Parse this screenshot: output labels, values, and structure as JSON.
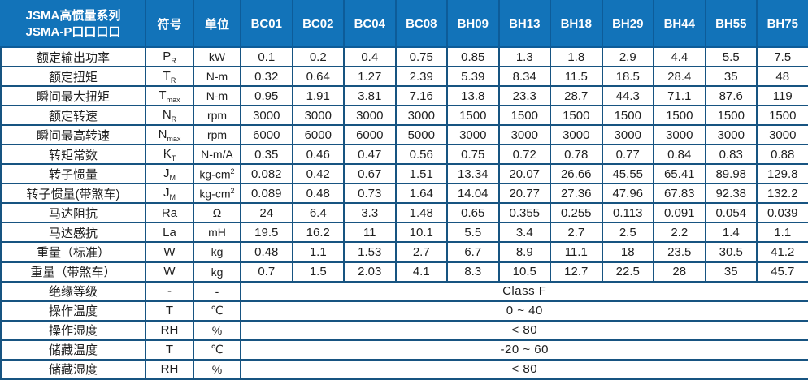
{
  "colors": {
    "header_bg": "#1273b9",
    "header_separator": "#0d5c99",
    "grid_border": "#175481",
    "text": "#1f1f1f",
    "header_text": "#ffffff"
  },
  "table": {
    "title_line1": "JSMA高惯量系列",
    "title_line2": "JSMA-P口口口口",
    "symbol_header": "符号",
    "unit_header": "单位",
    "models": [
      "BC01",
      "BC02",
      "BC04",
      "BC08",
      "BH09",
      "BH13",
      "BH18",
      "BH29",
      "BH44",
      "BH55",
      "BH75"
    ],
    "rows": [
      {
        "label": "额定输出功率",
        "symbol": "P",
        "symbol_sub": "R",
        "unit": "kW",
        "values": [
          "0.1",
          "0.2",
          "0.4",
          "0.75",
          "0.85",
          "1.3",
          "1.8",
          "2.9",
          "4.4",
          "5.5",
          "7.5"
        ]
      },
      {
        "label": "额定扭矩",
        "symbol": "T",
        "symbol_sub": "R",
        "unit": "N-m",
        "values": [
          "0.32",
          "0.64",
          "1.27",
          "2.39",
          "5.39",
          "8.34",
          "11.5",
          "18.5",
          "28.4",
          "35",
          "48"
        ]
      },
      {
        "label": "瞬间最大扭矩",
        "symbol": "T",
        "symbol_sub": "max",
        "unit": "N-m",
        "values": [
          "0.95",
          "1.91",
          "3.81",
          "7.16",
          "13.8",
          "23.3",
          "28.7",
          "44.3",
          "71.1",
          "87.6",
          "119"
        ]
      },
      {
        "label": "额定转速",
        "symbol": "N",
        "symbol_sub": "R",
        "unit": "rpm",
        "values": [
          "3000",
          "3000",
          "3000",
          "3000",
          "1500",
          "1500",
          "1500",
          "1500",
          "1500",
          "1500",
          "1500"
        ]
      },
      {
        "label": "瞬间最高转速",
        "symbol": "N",
        "symbol_sub": "max",
        "unit": "rpm",
        "values": [
          "6000",
          "6000",
          "6000",
          "5000",
          "3000",
          "3000",
          "3000",
          "3000",
          "3000",
          "3000",
          "3000"
        ]
      },
      {
        "label": "转矩常数",
        "symbol": "K",
        "symbol_sub": "T",
        "unit": "N-m/A",
        "values": [
          "0.35",
          "0.46",
          "0.47",
          "0.56",
          "0.75",
          "0.72",
          "0.78",
          "0.77",
          "0.84",
          "0.83",
          "0.88"
        ]
      },
      {
        "label": "转子惯量",
        "symbol": "J",
        "symbol_sub": "M",
        "unit": "kg-cm",
        "unit_sup": "2",
        "values": [
          "0.082",
          "0.42",
          "0.67",
          "1.51",
          "13.34",
          "20.07",
          "26.66",
          "45.55",
          "65.41",
          "89.98",
          "129.8"
        ]
      },
      {
        "label": "转子惯量(带煞车)",
        "symbol": "J",
        "symbol_sub": "M",
        "unit": "kg-cm",
        "unit_sup": "2",
        "values": [
          "0.089",
          "0.48",
          "0.73",
          "1.64",
          "14.04",
          "20.77",
          "27.36",
          "47.96",
          "67.83",
          "92.38",
          "132.2"
        ]
      },
      {
        "label": "马达阻抗",
        "symbol": "Ra",
        "unit": "Ω",
        "values": [
          "24",
          "6.4",
          "3.3",
          "1.48",
          "0.65",
          "0.355",
          "0.255",
          "0.113",
          "0.091",
          "0.054",
          "0.039"
        ]
      },
      {
        "label": "马达感抗",
        "symbol": "La",
        "unit": "mH",
        "values": [
          "19.5",
          "16.2",
          "11",
          "10.1",
          "5.5",
          "3.4",
          "2.7",
          "2.5",
          "2.2",
          "1.4",
          "1.1"
        ]
      },
      {
        "label": "重量（标准）",
        "symbol": "W",
        "unit": "kg",
        "values": [
          "0.48",
          "1.1",
          "1.53",
          "2.7",
          "6.7",
          "8.9",
          "11.1",
          "18",
          "23.5",
          "30.5",
          "41.2"
        ]
      },
      {
        "label": "重量（带煞车）",
        "symbol": "W",
        "unit": "kg",
        "values": [
          "0.7",
          "1.5",
          "2.03",
          "4.1",
          "8.3",
          "10.5",
          "12.7",
          "22.5",
          "28",
          "35",
          "45.7"
        ]
      },
      {
        "label": "绝缘等级",
        "symbol": "-",
        "unit": "-",
        "merged_value": "Class F"
      },
      {
        "label": "操作温度",
        "symbol": "T",
        "unit": "℃",
        "merged_value": "0 ~ 40"
      },
      {
        "label": "操作湿度",
        "symbol": "RH",
        "unit": "%",
        "merged_value": "< 80"
      },
      {
        "label": "储藏温度",
        "symbol": "T",
        "unit": "℃",
        "merged_value": "-20 ~ 60"
      },
      {
        "label": "储藏湿度",
        "symbol": "RH",
        "unit": "%",
        "merged_value": "< 80"
      }
    ]
  }
}
